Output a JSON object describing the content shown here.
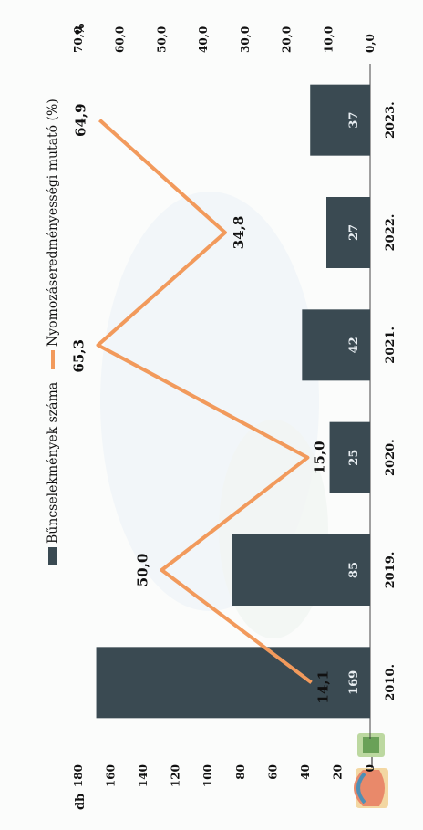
{
  "chart_data": {
    "type": "bar",
    "categories": [
      "2010.",
      "2019.",
      "2020.",
      "2021.",
      "2022.",
      "2023."
    ],
    "series": [
      {
        "name": "Bűncselekmények száma",
        "type": "bar",
        "axis": "left",
        "values": [
          169,
          85,
          25,
          42,
          27,
          37
        ],
        "color": "#3a4a52"
      },
      {
        "name": "Nyomozáseredményességi mutató (%)",
        "type": "line",
        "axis": "right",
        "values": [
          14.1,
          50.0,
          15.0,
          65.3,
          34.8,
          64.9
        ],
        "color": "#f29a5c"
      }
    ],
    "bar_labels": [
      "169",
      "85",
      "25",
      "42",
      "27",
      "37"
    ],
    "line_labels": [
      "14,1",
      "50,0",
      "15,0",
      "65,3",
      "34,8",
      "64,9"
    ],
    "left_axis": {
      "unit": "db",
      "ylim": [
        0,
        180
      ],
      "ticks": [
        "0",
        "20",
        "40",
        "60",
        "80",
        "100",
        "120",
        "140",
        "160",
        "180"
      ]
    },
    "right_axis": {
      "unit": "%",
      "ylim": [
        0,
        70
      ],
      "ticks": [
        "0,0",
        "10,0",
        "20,0",
        "30,0",
        "40,0",
        "50,0",
        "60,0",
        "70,0"
      ]
    },
    "legend": {
      "position": "top"
    },
    "grid": false
  }
}
